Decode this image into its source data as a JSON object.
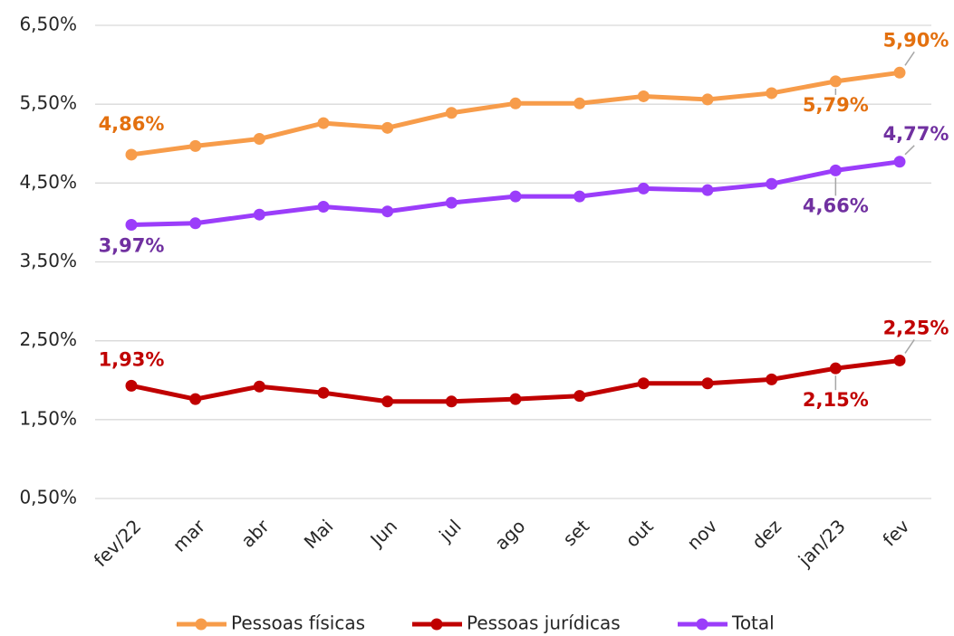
{
  "chart_data": {
    "type": "line",
    "categories": [
      "fev/22",
      "mar",
      "abr",
      "Mai",
      "Jun",
      "jul",
      "ago",
      "set",
      "out",
      "nov",
      "dez",
      "jan/23",
      "fev"
    ],
    "series": [
      {
        "name": "Pessoas físicas",
        "color": "#f79c4a",
        "label_color": "#e3700f",
        "values": [
          4.86,
          4.97,
          5.06,
          5.26,
          5.2,
          5.39,
          5.51,
          5.51,
          5.6,
          5.56,
          5.64,
          5.79,
          5.9
        ],
        "value_labels": [
          "4,86%",
          null,
          null,
          null,
          null,
          null,
          null,
          null,
          null,
          null,
          null,
          "5,79%",
          "5,90%"
        ]
      },
      {
        "name": "Pessoas jurídicas",
        "color": "#c00000",
        "label_color": "#c00000",
        "values": [
          1.93,
          1.76,
          1.92,
          1.84,
          1.73,
          1.73,
          1.76,
          1.8,
          1.96,
          1.96,
          2.01,
          2.15,
          2.25
        ],
        "value_labels": [
          "1,93%",
          null,
          null,
          null,
          null,
          null,
          null,
          null,
          null,
          null,
          null,
          "2,15%",
          "2,25%"
        ]
      },
      {
        "name": "Total",
        "color": "#9b3dfa",
        "label_color": "#7030a0",
        "values": [
          3.97,
          3.99,
          4.1,
          4.2,
          4.14,
          4.25,
          4.33,
          4.33,
          4.43,
          4.41,
          4.49,
          4.66,
          4.77
        ],
        "value_labels": [
          "3,97%",
          null,
          null,
          null,
          null,
          null,
          null,
          null,
          null,
          null,
          null,
          "4,66%",
          "4,77%"
        ]
      }
    ],
    "ylim": [
      0.5,
      6.5
    ],
    "yticks": [
      {
        "value": 0.5,
        "label": "0,50%"
      },
      {
        "value": 1.5,
        "label": "1,50%"
      },
      {
        "value": 2.5,
        "label": "2,50%"
      },
      {
        "value": 3.5,
        "label": "3,50%"
      },
      {
        "value": 4.5,
        "label": "4,50%"
      },
      {
        "value": 5.5,
        "label": "5,50%"
      },
      {
        "value": 6.5,
        "label": "6,50%"
      }
    ],
    "grid": true,
    "legend": "bottom"
  }
}
